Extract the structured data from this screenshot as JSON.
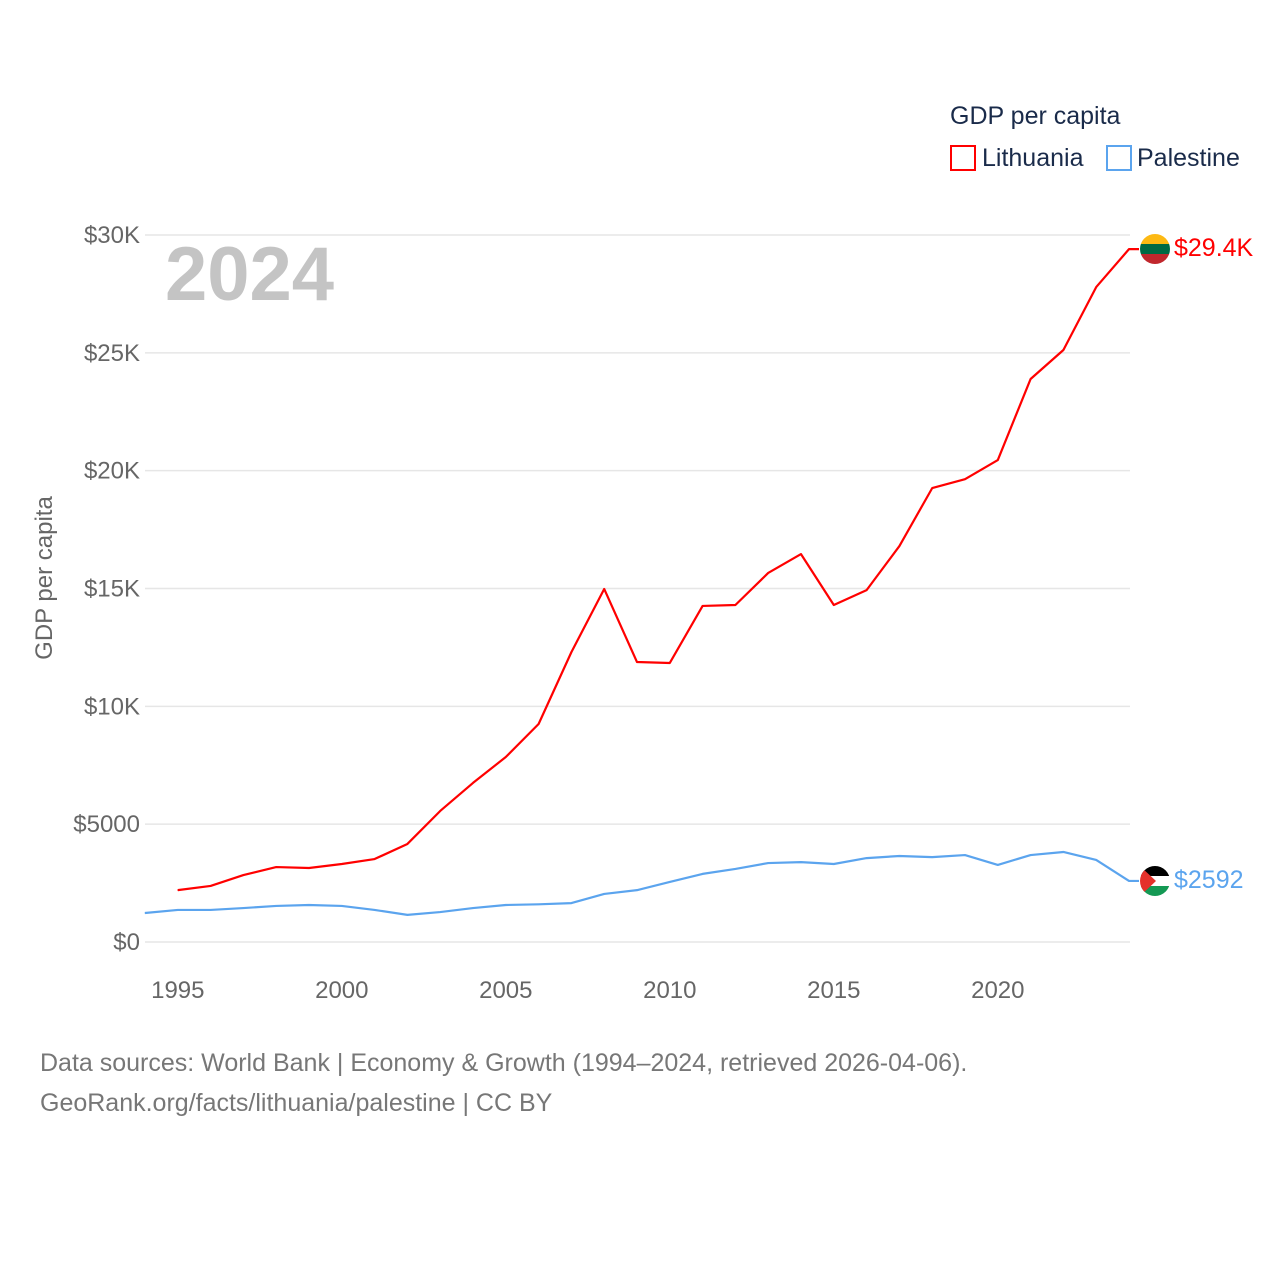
{
  "chart_data": {
    "type": "line",
    "title": "GDP per capita",
    "ylabel": "GDP per capita",
    "xlabel": "",
    "year_label": "2024",
    "xlim": [
      1994,
      2024
    ],
    "ylim": [
      0,
      30000
    ],
    "x_ticks": [
      "1995",
      "2000",
      "2005",
      "2010",
      "2015",
      "2020"
    ],
    "x_tick_values": [
      1995,
      2000,
      2005,
      2010,
      2015,
      2020
    ],
    "y_ticks": [
      "$0",
      "$5000",
      "$10K",
      "$15K",
      "$20K",
      "$25K",
      "$30K"
    ],
    "y_tick_values": [
      0,
      5000,
      10000,
      15000,
      20000,
      25000,
      30000
    ],
    "grid": true,
    "legend_placement": "top-right",
    "series": [
      {
        "name": "Lithuania",
        "color": "#ff0000",
        "end_label": "$29.4K",
        "x": [
          1995,
          1996,
          1997,
          1998,
          1999,
          2000,
          2001,
          2002,
          2003,
          2004,
          2005,
          2006,
          2007,
          2008,
          2009,
          2010,
          2011,
          2012,
          2013,
          2014,
          2015,
          2016,
          2017,
          2018,
          2019,
          2020,
          2021,
          2022,
          2023,
          2024
        ],
        "values": [
          2200,
          2380,
          2840,
          3180,
          3140,
          3310,
          3520,
          4160,
          5560,
          6750,
          7850,
          9250,
          12300,
          14980,
          11880,
          11840,
          14260,
          14300,
          15660,
          16460,
          14300,
          14930,
          16800,
          19260,
          19640,
          20450,
          23890,
          25120,
          27790,
          29400
        ]
      },
      {
        "name": "Palestine",
        "color": "#5ba4ee",
        "end_label": "$2592",
        "x": [
          1994,
          1995,
          1996,
          1997,
          1998,
          1999,
          2000,
          2001,
          2002,
          2003,
          2004,
          2005,
          2006,
          2007,
          2008,
          2009,
          2010,
          2011,
          2012,
          2013,
          2014,
          2015,
          2016,
          2017,
          2018,
          2019,
          2020,
          2021,
          2022,
          2023,
          2024
        ],
        "values": [
          1230,
          1360,
          1360,
          1440,
          1530,
          1570,
          1530,
          1360,
          1150,
          1270,
          1440,
          1570,
          1600,
          1650,
          2040,
          2200,
          2550,
          2890,
          3100,
          3350,
          3390,
          3310,
          3560,
          3650,
          3600,
          3690,
          3270,
          3690,
          3820,
          3480,
          2592
        ]
      }
    ]
  },
  "source_line1": "Data sources: World Bank | Economy & Growth (1994–2024, retrieved 2026-04-06).",
  "source_line2": "GeoRank.org/facts/lithuania/palestine | CC BY"
}
